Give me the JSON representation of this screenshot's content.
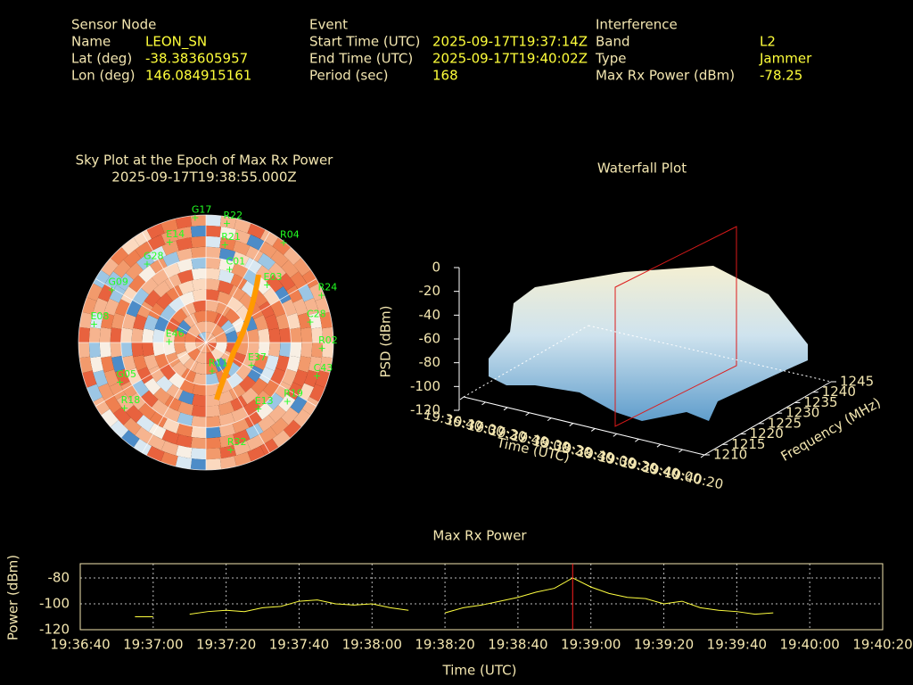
{
  "header": {
    "groups": [
      {
        "title": "Sensor Node",
        "rows": [
          {
            "label": "Name",
            "value": "LEON_SN"
          },
          {
            "label": "Lat (deg)",
            "value": "-38.383605957"
          },
          {
            "label": "Lon (deg)",
            "value": "146.084915161"
          }
        ]
      },
      {
        "title": "Event",
        "rows": [
          {
            "label": "Start Time (UTC)",
            "value": "2025-09-17T19:37:14Z"
          },
          {
            "label": "End Time (UTC)",
            "value": "2025-09-17T19:40:02Z"
          },
          {
            "label": "Period (sec)",
            "value": "168"
          }
        ]
      },
      {
        "title": "Interference",
        "rows": [
          {
            "label": "Band",
            "value": "L2"
          },
          {
            "label": "Type",
            "value": "Jammer"
          },
          {
            "label": "Max Rx Power (dBm)",
            "value": "-78.25"
          }
        ]
      }
    ]
  },
  "sky_plot": {
    "title": "Sky Plot at the Epoch of Max Rx Power",
    "subtitle": "2025-09-17T19:38:55.000Z",
    "satellites": [
      {
        "name": "G17",
        "az": 355,
        "el": 2
      },
      {
        "name": "R22",
        "az": 10,
        "el": 5
      },
      {
        "name": "E14",
        "az": 340,
        "el": 15
      },
      {
        "name": "R21",
        "az": 11,
        "el": 20
      },
      {
        "name": "R04",
        "az": 38,
        "el": 1
      },
      {
        "name": "E03",
        "az": 47,
        "el": 31
      },
      {
        "name": "R24",
        "az": 68,
        "el": 2
      },
      {
        "name": "C28",
        "az": 79,
        "el": 15
      },
      {
        "name": "R02",
        "az": 93,
        "el": 8
      },
      {
        "name": "C43",
        "az": 107,
        "el": 8
      },
      {
        "name": "R19",
        "az": 126,
        "el": 19
      },
      {
        "name": "E13",
        "az": 142,
        "el": 30
      },
      {
        "name": "R32",
        "az": 167,
        "el": 12
      },
      {
        "name": "R18",
        "az": 231,
        "el": 16
      },
      {
        "name": "G05",
        "az": 245,
        "el": 23
      },
      {
        "name": "E08",
        "az": 279,
        "el": 10
      },
      {
        "name": "G09",
        "az": 299,
        "el": 14
      },
      {
        "name": "G28",
        "az": 323,
        "el": 21
      },
      {
        "name": "R11",
        "az": 168,
        "el": 69
      },
      {
        "name": "E37",
        "az": 117,
        "el": 54
      },
      {
        "name": "E46",
        "az": 271,
        "el": 64
      },
      {
        "name": "C01",
        "az": 18,
        "el": 36
      }
    ]
  },
  "chart_data": [
    {
      "type": "surface",
      "title": "Waterfall Plot",
      "xlabel": "Time (UTC)",
      "ylabel": "Frequency (MHz)",
      "zlabel": "PSD (dBm)",
      "xticks": [
        "19:36:40",
        "19:37:00",
        "19:37:20",
        "19:37:40",
        "19:38:00",
        "19:38:20",
        "19:38:40",
        "19:39:00",
        "19:39:20",
        "19:39:40",
        "19:40:00",
        "19:40:20"
      ],
      "yticks": [
        1210,
        1215,
        1220,
        1225,
        1230,
        1235,
        1240,
        1245
      ],
      "zticks": [
        0,
        -20,
        -40,
        -60,
        -80,
        -100,
        -120
      ],
      "xlim": [
        "19:36:40",
        "19:40:20"
      ],
      "ylim": [
        1210,
        1245
      ],
      "zlim": [
        -120,
        0
      ]
    },
    {
      "type": "line",
      "title": "Max Rx Power",
      "xlabel": "Time (UTC)",
      "ylabel": "Power (dBm)",
      "x": [
        "19:36:55",
        "19:37:00",
        "19:37:05",
        "19:37:10",
        "19:37:15",
        "19:37:20",
        "19:37:25",
        "19:37:30",
        "19:37:35",
        "19:37:40",
        "19:37:45",
        "19:37:50",
        "19:37:55",
        "19:38:00",
        "19:38:05",
        "19:38:10",
        "19:38:15",
        "19:38:20",
        "19:38:25",
        "19:38:30",
        "19:38:35",
        "19:38:40",
        "19:38:45",
        "19:38:50",
        "19:38:55",
        "19:39:00",
        "19:39:05",
        "19:39:10",
        "19:39:15",
        "19:39:20",
        "19:39:25",
        "19:39:30",
        "19:39:35",
        "19:39:40",
        "19:39:45",
        "19:39:50"
      ],
      "values": [
        -110,
        -110,
        null,
        -108,
        -106,
        -105,
        -106,
        -103,
        -102,
        -98,
        -97,
        -100,
        -101,
        -100,
        -103,
        -105,
        null,
        -107,
        -103,
        -101,
        -98,
        -95,
        -91,
        -88,
        -80,
        -87,
        -92,
        -95,
        -96,
        -100,
        -98,
        -103,
        -105,
        -106,
        -108,
        -107
      ],
      "color": "#ffff40",
      "marker_x": "19:38:55",
      "marker_color": "#ff2020",
      "xlim": [
        "19:36:40",
        "19:40:20"
      ],
      "xticks": [
        "19:36:40",
        "19:37:00",
        "19:37:20",
        "19:37:40",
        "19:38:00",
        "19:38:20",
        "19:38:40",
        "19:39:00",
        "19:39:20",
        "19:39:40",
        "19:40:00",
        "19:40:20"
      ],
      "ylim": [
        -120,
        -69
      ],
      "yticks": [
        -80,
        -100,
        -120
      ],
      "grid": true
    }
  ]
}
